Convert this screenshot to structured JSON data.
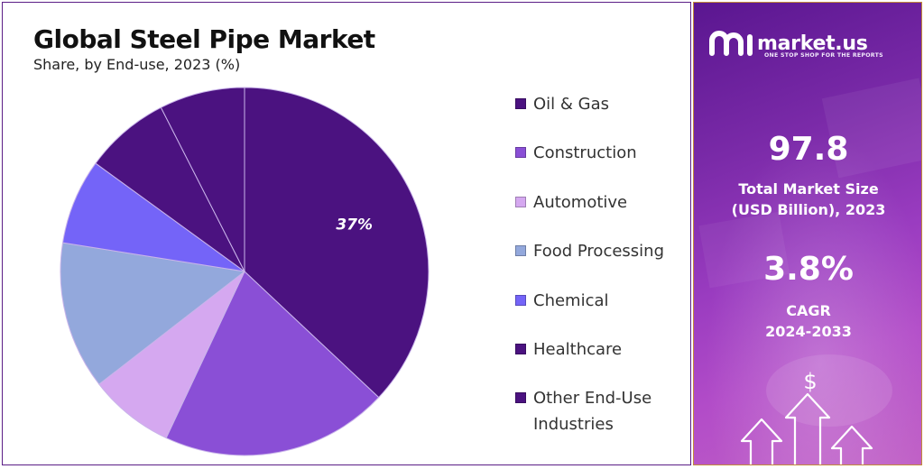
{
  "title": "Global Steel Pipe Market",
  "subtitle": "Share, by End-use, 2023 (%)",
  "chart_data": {
    "type": "pie",
    "title": "Global Steel Pipe Market",
    "subtitle": "Share, by End-use, 2023 (%)",
    "start_angle_deg": 0,
    "direction": "clockwise",
    "slices": [
      {
        "label": "Oil & Gas",
        "value": 37,
        "color": "#4b1280",
        "data_label": "37%"
      },
      {
        "label": "Construction",
        "value": 20,
        "color": "#8a4fd6",
        "data_label": ""
      },
      {
        "label": "Automotive",
        "value": 7.5,
        "color": "#d5a8f0",
        "data_label": ""
      },
      {
        "label": "Food Processing",
        "value": 13,
        "color": "#93a8dc",
        "data_label": ""
      },
      {
        "label": "Chemical",
        "value": 7.5,
        "color": "#7464f8",
        "data_label": ""
      },
      {
        "label": "Healthcare",
        "value": 7.5,
        "color": "#4b1280",
        "data_label": ""
      },
      {
        "label": "Other End-Use Industries",
        "value": 7.5,
        "color": "#4b1280",
        "data_label": ""
      }
    ],
    "legend": {
      "position": "right",
      "entries": [
        {
          "label": "Oil & Gas",
          "color": "#4b1280"
        },
        {
          "label": "Construction",
          "color": "#8a4fd6"
        },
        {
          "label": "Automotive",
          "color": "#d5a8f0"
        },
        {
          "label": "Food Processing",
          "color": "#93a8dc"
        },
        {
          "label": "Chemical",
          "color": "#7464f8"
        },
        {
          "label": "Healthcare",
          "color": "#4b1280"
        },
        {
          "label": "Other End-Use\nIndustries",
          "color": "#4b1280"
        }
      ]
    }
  },
  "sidebar": {
    "brand": "market.us",
    "tagline": "ONE STOP SHOP FOR THE REPORTS",
    "market_size_value": "97.8",
    "market_size_label_line1": "Total Market Size",
    "market_size_label_line2": "(USD Billion), 2023",
    "cagr_value": "3.8%",
    "cagr_label_line1": "CAGR",
    "cagr_label_line2": "2024-2033",
    "dollar_symbol": "$",
    "logo_icon": "market-us-logo-icon",
    "arrows_icon": "growth-arrows-icon"
  }
}
